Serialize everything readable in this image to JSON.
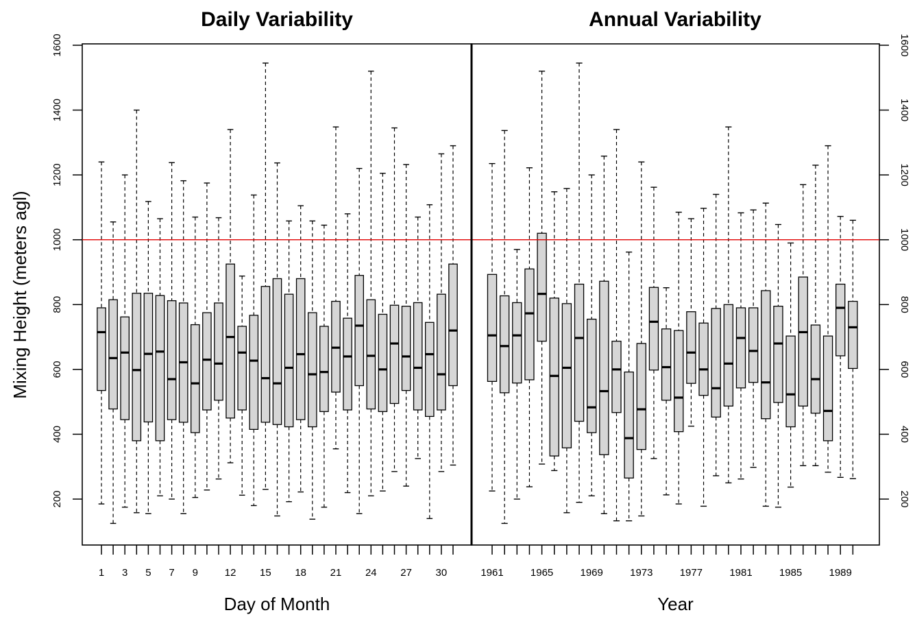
{
  "chart_data": [
    {
      "type": "box",
      "title": "Daily Variability",
      "xlabel": "Day of Month",
      "ylabel": "Mixing Height (meters agl)",
      "ylim": [
        80,
        1630
      ],
      "yticks": [
        200,
        400,
        600,
        800,
        1000,
        1200,
        1400,
        1600
      ],
      "reference_line": 1000,
      "x_tick_labels": [
        "1",
        "3",
        "5",
        "7",
        "9",
        "12",
        "15",
        "18",
        "21",
        "24",
        "27",
        "30"
      ],
      "categories": [
        "1",
        "2",
        "3",
        "4",
        "5",
        "6",
        "7",
        "8",
        "9",
        "10",
        "11",
        "12",
        "13",
        "14",
        "15",
        "16",
        "17",
        "18",
        "19",
        "20",
        "21",
        "22",
        "23",
        "24",
        "25",
        "26",
        "27",
        "28",
        "29",
        "30",
        "31"
      ],
      "boxes": [
        {
          "min": 185,
          "q1": 535,
          "median": 715,
          "q3": 790,
          "max": 1240
        },
        {
          "min": 125,
          "q1": 478,
          "median": 635,
          "q3": 815,
          "max": 1055
        },
        {
          "min": 175,
          "q1": 445,
          "median": 652,
          "q3": 762,
          "max": 1200
        },
        {
          "min": 158,
          "q1": 380,
          "median": 598,
          "q3": 835,
          "max": 1400
        },
        {
          "min": 155,
          "q1": 438,
          "median": 648,
          "q3": 835,
          "max": 1118
        },
        {
          "min": 210,
          "q1": 380,
          "median": 655,
          "q3": 828,
          "max": 1065
        },
        {
          "min": 200,
          "q1": 445,
          "median": 570,
          "q3": 812,
          "max": 1238
        },
        {
          "min": 155,
          "q1": 437,
          "median": 622,
          "q3": 805,
          "max": 1182
        },
        {
          "min": 205,
          "q1": 405,
          "median": 557,
          "q3": 738,
          "max": 1070
        },
        {
          "min": 228,
          "q1": 475,
          "median": 630,
          "q3": 775,
          "max": 1175
        },
        {
          "min": 262,
          "q1": 505,
          "median": 618,
          "q3": 805,
          "max": 1068
        },
        {
          "min": 312,
          "q1": 450,
          "median": 700,
          "q3": 925,
          "max": 1340
        },
        {
          "min": 212,
          "q1": 475,
          "median": 652,
          "q3": 733,
          "max": 888
        },
        {
          "min": 180,
          "q1": 415,
          "median": 627,
          "q3": 767,
          "max": 1138
        },
        {
          "min": 230,
          "q1": 437,
          "median": 573,
          "q3": 856,
          "max": 1545
        },
        {
          "min": 148,
          "q1": 430,
          "median": 557,
          "q3": 880,
          "max": 1237
        },
        {
          "min": 192,
          "q1": 423,
          "median": 605,
          "q3": 832,
          "max": 1058
        },
        {
          "min": 222,
          "q1": 445,
          "median": 647,
          "q3": 880,
          "max": 1105
        },
        {
          "min": 138,
          "q1": 423,
          "median": 585,
          "q3": 775,
          "max": 1058
        },
        {
          "min": 175,
          "q1": 470,
          "median": 592,
          "q3": 733,
          "max": 1045
        },
        {
          "min": 355,
          "q1": 530,
          "median": 667,
          "q3": 810,
          "max": 1348
        },
        {
          "min": 220,
          "q1": 475,
          "median": 640,
          "q3": 758,
          "max": 1080
        },
        {
          "min": 155,
          "q1": 550,
          "median": 735,
          "q3": 890,
          "max": 1220
        },
        {
          "min": 210,
          "q1": 478,
          "median": 642,
          "q3": 815,
          "max": 1520
        },
        {
          "min": 225,
          "q1": 470,
          "median": 600,
          "q3": 770,
          "max": 1205
        },
        {
          "min": 285,
          "q1": 495,
          "median": 680,
          "q3": 798,
          "max": 1345
        },
        {
          "min": 240,
          "q1": 535,
          "median": 640,
          "q3": 795,
          "max": 1232
        },
        {
          "min": 325,
          "q1": 475,
          "median": 605,
          "q3": 806,
          "max": 1070
        },
        {
          "min": 140,
          "q1": 455,
          "median": 647,
          "q3": 745,
          "max": 1108
        },
        {
          "min": 285,
          "q1": 475,
          "median": 585,
          "q3": 832,
          "max": 1265
        },
        {
          "min": 305,
          "q1": 550,
          "median": 720,
          "q3": 925,
          "max": 1290
        }
      ]
    },
    {
      "type": "box",
      "title": "Annual Variability",
      "xlabel": "Year",
      "ylabel": "",
      "ylim": [
        80,
        1630
      ],
      "yticks": [
        200,
        400,
        600,
        800,
        1000,
        1200,
        1400,
        1600
      ],
      "reference_line": 1000,
      "x_tick_labels": [
        "1961",
        "1965",
        "1969",
        "1973",
        "1977",
        "1981",
        "1985",
        "1989"
      ],
      "categories": [
        "1961",
        "1962",
        "1963",
        "1964",
        "1965",
        "1966",
        "1967",
        "1968",
        "1969",
        "1970",
        "1971",
        "1972",
        "1973",
        "1974",
        "1975",
        "1976",
        "1977",
        "1978",
        "1979",
        "1980",
        "1981",
        "1982",
        "1983",
        "1984",
        "1985",
        "1986",
        "1987",
        "1988",
        "1989",
        "1990"
      ],
      "boxes": [
        {
          "min": 225,
          "q1": 563,
          "median": 705,
          "q3": 893,
          "max": 1235
        },
        {
          "min": 125,
          "q1": 528,
          "median": 672,
          "q3": 827,
          "max": 1337
        },
        {
          "min": 200,
          "q1": 558,
          "median": 705,
          "q3": 806,
          "max": 970
        },
        {
          "min": 238,
          "q1": 568,
          "median": 773,
          "q3": 910,
          "max": 1222
        },
        {
          "min": 308,
          "q1": 687,
          "median": 833,
          "q3": 1020,
          "max": 1520
        },
        {
          "min": 288,
          "q1": 333,
          "median": 580,
          "q3": 820,
          "max": 1148
        },
        {
          "min": 158,
          "q1": 358,
          "median": 605,
          "q3": 803,
          "max": 1158
        },
        {
          "min": 190,
          "q1": 440,
          "median": 697,
          "q3": 863,
          "max": 1545
        },
        {
          "min": 210,
          "q1": 405,
          "median": 483,
          "q3": 755,
          "max": 1200
        },
        {
          "min": 155,
          "q1": 337,
          "median": 533,
          "q3": 872,
          "max": 1258
        },
        {
          "min": 133,
          "q1": 467,
          "median": 600,
          "q3": 687,
          "max": 1340
        },
        {
          "min": 133,
          "q1": 265,
          "median": 388,
          "q3": 592,
          "max": 962
        },
        {
          "min": 148,
          "q1": 353,
          "median": 477,
          "q3": 680,
          "max": 1240
        },
        {
          "min": 325,
          "q1": 598,
          "median": 747,
          "q3": 853,
          "max": 1162
        },
        {
          "min": 213,
          "q1": 505,
          "median": 607,
          "q3": 725,
          "max": 852
        },
        {
          "min": 185,
          "q1": 408,
          "median": 513,
          "q3": 720,
          "max": 1085
        },
        {
          "min": 425,
          "q1": 557,
          "median": 652,
          "q3": 778,
          "max": 1065
        },
        {
          "min": 178,
          "q1": 520,
          "median": 600,
          "q3": 743,
          "max": 1097
        },
        {
          "min": 272,
          "q1": 453,
          "median": 542,
          "q3": 788,
          "max": 1140
        },
        {
          "min": 250,
          "q1": 487,
          "median": 618,
          "q3": 800,
          "max": 1348
        },
        {
          "min": 262,
          "q1": 543,
          "median": 697,
          "q3": 790,
          "max": 1083
        },
        {
          "min": 298,
          "q1": 560,
          "median": 657,
          "q3": 790,
          "max": 1092
        },
        {
          "min": 178,
          "q1": 448,
          "median": 560,
          "q3": 843,
          "max": 1113
        },
        {
          "min": 175,
          "q1": 498,
          "median": 680,
          "q3": 795,
          "max": 1047
        },
        {
          "min": 237,
          "q1": 423,
          "median": 523,
          "q3": 703,
          "max": 990
        },
        {
          "min": 303,
          "q1": 487,
          "median": 715,
          "q3": 885,
          "max": 1170
        },
        {
          "min": 303,
          "q1": 465,
          "median": 570,
          "q3": 737,
          "max": 1230
        },
        {
          "min": 283,
          "q1": 380,
          "median": 472,
          "q3": 703,
          "max": 1290
        },
        {
          "min": 267,
          "q1": 642,
          "median": 790,
          "q3": 863,
          "max": 1072
        },
        {
          "min": 263,
          "q1": 603,
          "median": 730,
          "q3": 810,
          "max": 1060
        }
      ]
    }
  ]
}
